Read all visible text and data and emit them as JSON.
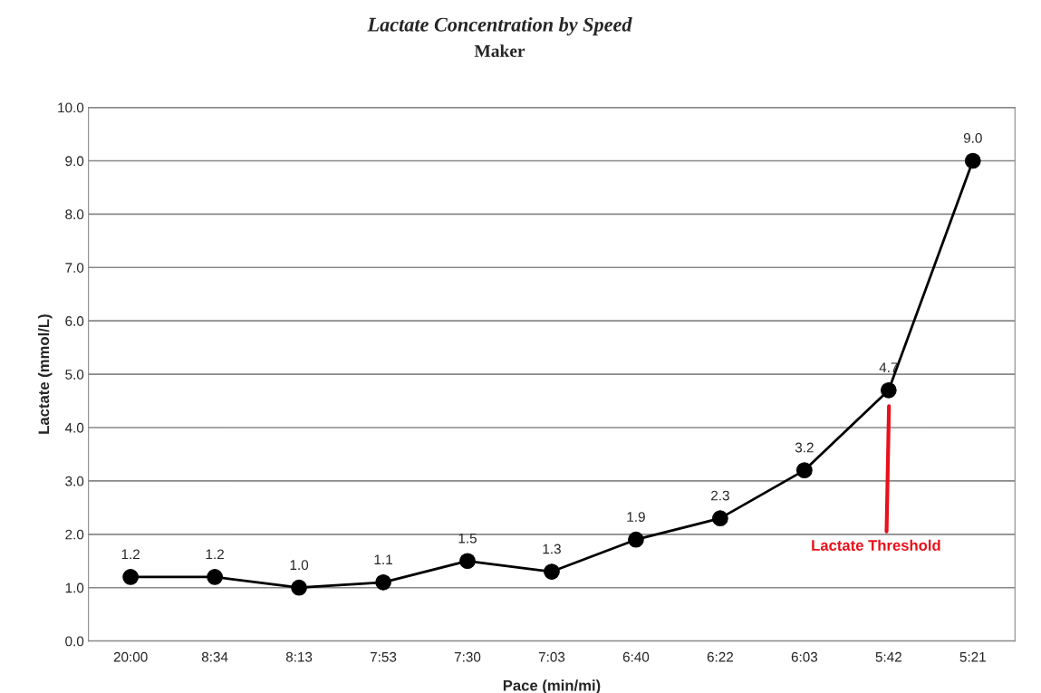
{
  "chart_data": {
    "type": "line",
    "title": "Lactate Concentration by Speed",
    "subtitle": "Maker",
    "xlabel": "Pace (min/mi)",
    "ylabel": "Lactate (mmol/L)",
    "categories": [
      "20:00",
      "8:34",
      "8:13",
      "7:53",
      "7:30",
      "7:03",
      "6:40",
      "6:22",
      "6:03",
      "5:42",
      "5:21"
    ],
    "series": [
      {
        "color": "#000000",
        "values": [
          1.2,
          1.2,
          1.0,
          1.1,
          1.5,
          1.3,
          1.9,
          2.3,
          3.2,
          4.7,
          9.0
        ],
        "value_labels": [
          "1.2",
          "1.2",
          "1.0",
          "1.1",
          "1.5",
          "1.3",
          "1.9",
          "2.3",
          "3.2",
          "4.7",
          "9.0"
        ]
      }
    ],
    "ylim": [
      0,
      10
    ],
    "yticks": [
      {
        "value": 0,
        "label": "0.0"
      },
      {
        "value": 1,
        "label": "1.0"
      },
      {
        "value": 2,
        "label": "2.0"
      },
      {
        "value": 3,
        "label": "3.0"
      },
      {
        "value": 4,
        "label": "4.0"
      },
      {
        "value": 5,
        "label": "5.0"
      },
      {
        "value": 6,
        "label": "6.0"
      },
      {
        "value": 7,
        "label": "7.0"
      },
      {
        "value": 8,
        "label": "8.0"
      },
      {
        "value": 9,
        "label": "9.0"
      },
      {
        "value": 10,
        "label": "10.0"
      }
    ],
    "annotations": [
      "Lactate Threshold"
    ],
    "grid": "y",
    "marker": "circle",
    "line_style": "solid",
    "legend": false
  }
}
